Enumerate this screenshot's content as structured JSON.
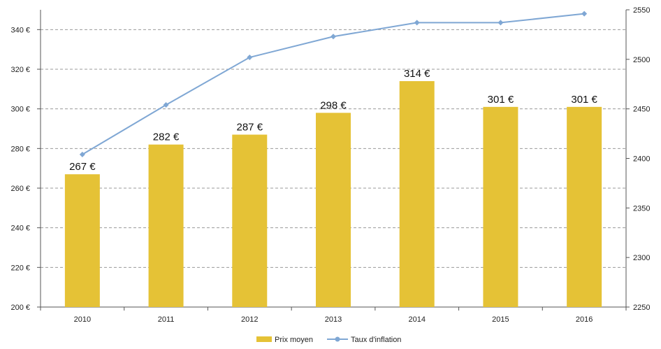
{
  "chart_data": {
    "type": "bar+line",
    "categories": [
      "2010",
      "2011",
      "2012",
      "2013",
      "2014",
      "2015",
      "2016"
    ],
    "series": [
      {
        "name": "Prix moyen",
        "type": "bar",
        "axis": "left",
        "values": [
          267,
          282,
          287,
          298,
          314,
          301,
          301
        ],
        "labels": [
          "267 €",
          "282 €",
          "287 €",
          "298 €",
          "314 €",
          "301 €",
          "301 €"
        ],
        "color": "#E5C236"
      },
      {
        "name": "Taux d'inflation",
        "type": "line",
        "axis": "right",
        "values": [
          2404,
          2454,
          2502,
          2523,
          2537,
          2537,
          2546
        ],
        "color": "#7FA7D4"
      }
    ],
    "y_left": {
      "min": 200,
      "max": 350,
      "ticks": [
        200,
        220,
        240,
        260,
        280,
        300,
        320,
        340
      ],
      "tick_labels": [
        "200 €",
        "220 €",
        "240 €",
        "260 €",
        "280 €",
        "300 €",
        "320 €",
        "340 €"
      ]
    },
    "y_right": {
      "min": 2250,
      "max": 2550,
      "ticks": [
        2250,
        2300,
        2350,
        2400,
        2450,
        2500,
        2550
      ],
      "tick_labels": [
        "2250",
        "2300",
        "2350",
        "2400",
        "2450",
        "2500",
        "2550"
      ]
    },
    "grid": true,
    "legend_position": "bottom"
  }
}
